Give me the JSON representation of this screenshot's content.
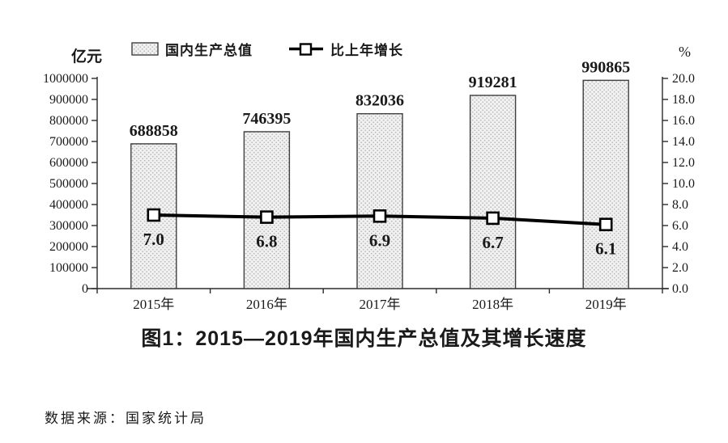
{
  "chart_data": {
    "type": "bar+line",
    "categories": [
      "2015年",
      "2016年",
      "2017年",
      "2018年",
      "2019年"
    ],
    "series": [
      {
        "name": "国内生产总值",
        "type": "bar",
        "axis": "left",
        "values": [
          688858,
          746395,
          832036,
          919281,
          990865
        ]
      },
      {
        "name": "比上年增长",
        "type": "line",
        "axis": "right",
        "values": [
          7.0,
          6.8,
          6.9,
          6.7,
          6.1
        ]
      }
    ],
    "left_axis": {
      "label": "亿元",
      "min": 0,
      "max": 1000000,
      "step": 100000
    },
    "right_axis": {
      "label": "%",
      "min": 0,
      "max": 20,
      "step": 2
    },
    "title": "图1：2015—2019年国内生产总值及其增长速度",
    "source": "数据来源：国家统计局",
    "legend_position": "top",
    "grid": false,
    "colors": {
      "bar_fill": "#f1f1f1",
      "bar_dot": "#b5b5b5",
      "bar_border": "#3f3f3f",
      "line": "#000000",
      "marker_fill": "#ffffff",
      "text": "#1a1a1a"
    }
  }
}
